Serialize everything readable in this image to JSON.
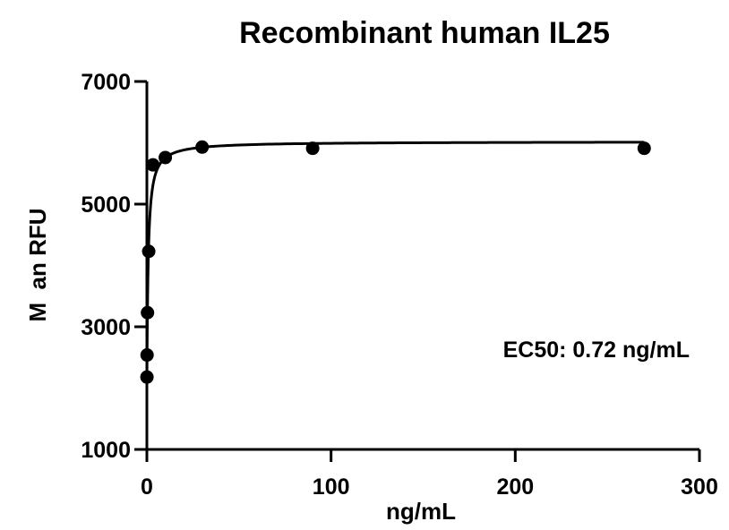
{
  "chart_data": {
    "type": "scatter",
    "title": "Recombinant human IL25",
    "xlabel": "ng/mL",
    "ylabel": "M  an RFU",
    "xlim": [
      0,
      300
    ],
    "ylim": [
      1000,
      7000
    ],
    "x_ticks": [
      0,
      100,
      200,
      300
    ],
    "y_ticks": [
      1000,
      3000,
      5000,
      7000
    ],
    "grid": false,
    "legend": "none",
    "annotation": "EC50: 0.72 ng/mL",
    "series": [
      {
        "x": [
          0.04,
          0.11,
          0.33,
          1,
          3.3,
          10,
          30,
          90,
          270
        ],
        "y": [
          2180,
          2540,
          3230,
          4230,
          5640,
          5760,
          5930,
          5910,
          5910
        ]
      }
    ],
    "fit": {
      "model": "4PL",
      "bottom": 2050,
      "top": 6020,
      "ec50": 0.72,
      "hill": 1.0
    },
    "colors": {
      "marker": "#000000",
      "line": "#000000"
    }
  }
}
